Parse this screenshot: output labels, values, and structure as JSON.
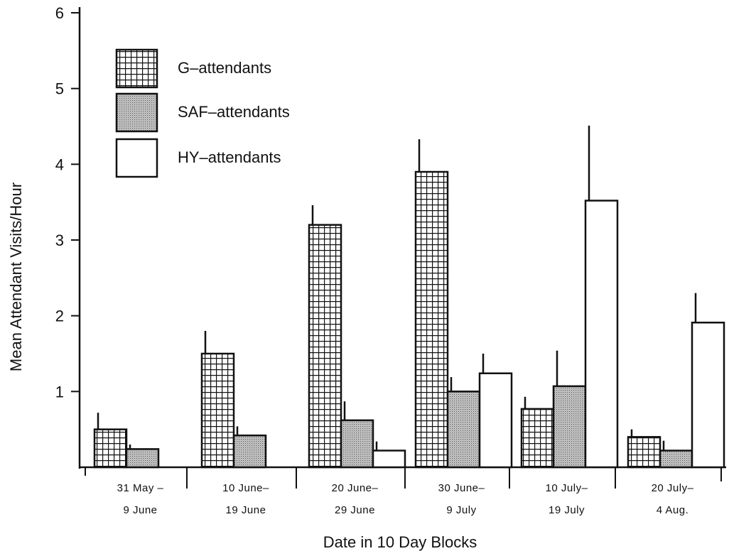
{
  "chart_data": {
    "type": "bar",
    "title": "",
    "xlabel": "Date in 10 Day Blocks",
    "ylabel": "Mean Attendant Visits/Hour",
    "ylim": [
      0,
      6
    ],
    "y_ticks": [
      "1",
      "2",
      "3",
      "4",
      "5",
      "6"
    ],
    "categories": [
      {
        "line1": "31 May –",
        "line2": "9 June"
      },
      {
        "line1": "10 June–",
        "line2": "19 June"
      },
      {
        "line1": "20 June–",
        "line2": "29 June"
      },
      {
        "line1": "30 June–",
        "line2": "9 July"
      },
      {
        "line1": "10 July–",
        "line2": "19 July"
      },
      {
        "line1": "20 July–",
        "line2": "4 Aug."
      }
    ],
    "series": [
      {
        "name": "G–attendants",
        "pattern": "grid",
        "values": [
          0.5,
          1.5,
          3.2,
          3.9,
          0.77,
          0.4
        ],
        "errors": [
          0.22,
          0.3,
          0.26,
          0.43,
          0.16,
          0.1
        ]
      },
      {
        "name": "SAF–attendants",
        "pattern": "stipple",
        "values": [
          0.24,
          0.42,
          0.62,
          1.0,
          1.07,
          0.22
        ],
        "errors": [
          0.06,
          0.12,
          0.25,
          0.19,
          0.47,
          0.13
        ]
      },
      {
        "name": "HY–attendants",
        "pattern": "empty",
        "values": [
          null,
          null,
          0.22,
          1.24,
          3.52,
          1.91
        ],
        "errors": [
          null,
          null,
          0.12,
          0.26,
          0.99,
          0.39
        ]
      }
    ],
    "legend": {
      "position": "top-left"
    },
    "grid": false
  }
}
